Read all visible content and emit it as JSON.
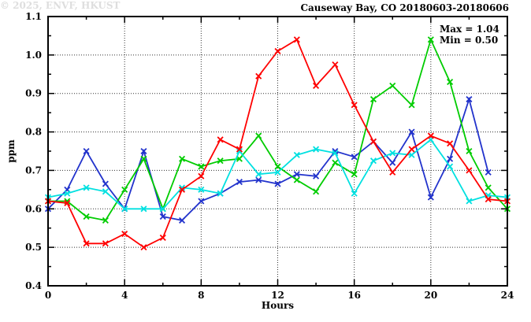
{
  "chart": {
    "annotation": {
      "max": "Max = 1.04",
      "min": "Min = 0.50"
    },
    "watermark": "© 2025, ENVF, HKUST"
  },
  "chart_data": {
    "type": "line",
    "title": "Causeway Bay, CO 20180603-20180606",
    "xlabel": "Hours",
    "ylabel": "ppm",
    "xlim": [
      0,
      24
    ],
    "ylim": [
      0.4,
      1.1
    ],
    "grid": "dotted lines at major ticks, full plot border with mirrored ticks",
    "legend_position": "none",
    "annotations": [
      "Max = 1.04",
      "Min = 0.50"
    ],
    "x_axis": {
      "label": "Hours",
      "major_ticks": [
        0,
        4,
        8,
        12,
        16,
        20,
        24
      ],
      "minor_ticks": [
        2,
        6,
        10,
        14,
        18,
        22
      ],
      "gridlines": [
        4,
        8,
        12,
        16,
        20
      ]
    },
    "y_axis": {
      "label": "ppm",
      "major_ticks": [
        0.4,
        0.5,
        0.6,
        0.7,
        0.8,
        0.9,
        1.0,
        1.1
      ],
      "minor_ticks": [
        0.45,
        0.55,
        0.65,
        0.75,
        0.85,
        0.95,
        1.05
      ],
      "gridlines": [
        0.5,
        0.6,
        0.7,
        0.8,
        0.9,
        1.0
      ]
    },
    "x": [
      0,
      1,
      2,
      3,
      4,
      5,
      6,
      7,
      8,
      9,
      10,
      11,
      12,
      13,
      14,
      15,
      16,
      17,
      18,
      19,
      20,
      21,
      22,
      23,
      24
    ],
    "series": [
      {
        "name": "series-blue",
        "color": "#2233cc",
        "marker": "x",
        "values": [
          0.6,
          0.65,
          0.75,
          0.665,
          0.6,
          0.75,
          0.58,
          0.57,
          0.62,
          0.64,
          0.67,
          0.675,
          0.665,
          0.69,
          0.685,
          0.75,
          0.735,
          0.775,
          0.72,
          0.8,
          0.63,
          0.73,
          0.885,
          0.695,
          null
        ]
      },
      {
        "name": "series-green",
        "color": "#00cc00",
        "marker": "x",
        "values": [
          0.62,
          0.62,
          0.58,
          0.57,
          0.65,
          0.73,
          0.6,
          0.73,
          0.71,
          0.725,
          0.73,
          0.79,
          0.71,
          0.675,
          0.645,
          0.72,
          0.69,
          0.885,
          0.92,
          0.87,
          1.04,
          0.93,
          0.75,
          0.655,
          0.6
        ]
      },
      {
        "name": "series-cyan",
        "color": "#00e0e0",
        "marker": "x",
        "values": [
          0.63,
          0.64,
          0.655,
          0.645,
          0.6,
          0.6,
          0.6,
          0.655,
          0.65,
          0.64,
          0.75,
          0.69,
          0.695,
          0.74,
          0.755,
          0.745,
          0.64,
          0.725,
          0.745,
          0.74,
          0.78,
          0.71,
          0.62,
          0.635,
          0.63
        ]
      },
      {
        "name": "series-red",
        "color": "#ff0000",
        "marker": "x",
        "values": [
          0.62,
          0.615,
          0.51,
          0.51,
          0.535,
          0.5,
          0.525,
          0.65,
          0.685,
          0.78,
          0.755,
          0.945,
          1.01,
          1.04,
          0.92,
          0.975,
          0.87,
          0.775,
          0.695,
          0.755,
          0.79,
          0.77,
          0.7,
          0.625,
          0.62
        ]
      }
    ]
  }
}
